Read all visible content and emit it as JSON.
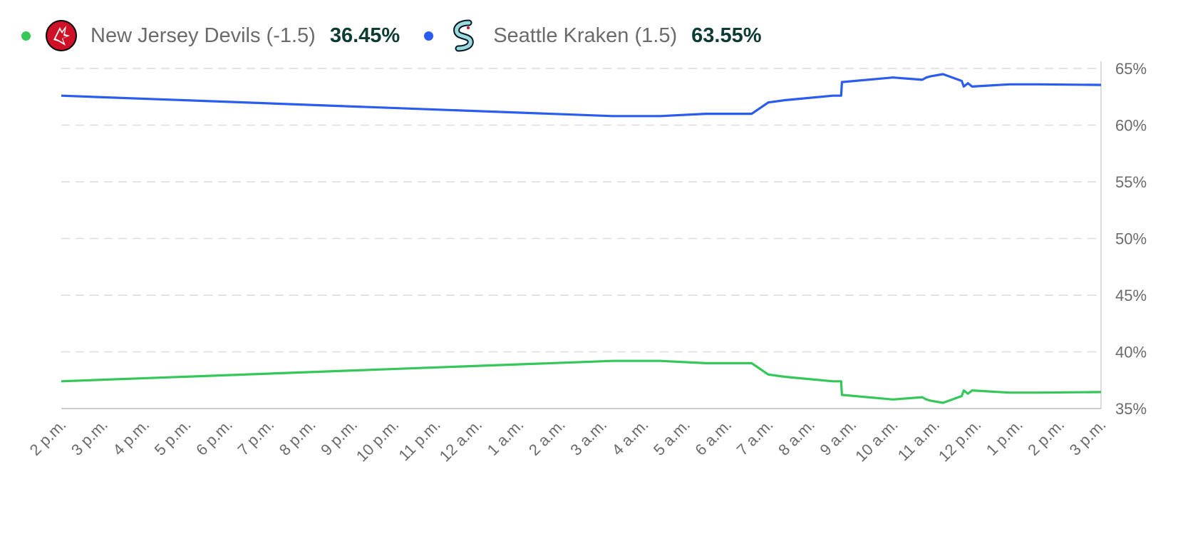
{
  "legend": [
    {
      "team": "New Jersey Devils (-1.5)",
      "pct": "36.45%",
      "color": "#35c75a",
      "logo_icon": "devils-logo-icon",
      "logo_color": "#ce1126"
    },
    {
      "team": "Seattle Kraken (1.5)",
      "pct": "63.55%",
      "color": "#2a5cf0",
      "logo_icon": "kraken-logo-icon",
      "logo_color": "#9cdbd9"
    }
  ],
  "chart_data": {
    "type": "line",
    "xlim": [
      0,
      25
    ],
    "ylim": [
      35,
      65
    ],
    "x_ticks": [
      "2 p.m.",
      "3 p.m.",
      "4 p.m.",
      "5 p.m.",
      "6 p.m.",
      "7 p.m.",
      "8 p.m.",
      "9 p.m.",
      "10 p.m.",
      "11 p.m.",
      "12 a.m.",
      "1 a.m.",
      "2 a.m.",
      "3 a.m.",
      "4 a.m.",
      "5 a.m.",
      "6 a.m.",
      "7 a.m.",
      "8 a.m.",
      "9 a.m.",
      "10 a.m.",
      "11 a.m.",
      "12 p.m.",
      "1 p.m.",
      "2 p.m.",
      "3 p.m."
    ],
    "y_ticks": [
      "35%",
      "40%",
      "45%",
      "50%",
      "55%",
      "60%",
      "65%"
    ],
    "y_tick_values": [
      35,
      40,
      45,
      50,
      55,
      60,
      65
    ],
    "grid": true,
    "legend_position": "top-left",
    "series": [
      {
        "name": "Seattle Kraken (1.5)",
        "color": "#2a5cf0",
        "x": [
          0,
          13.25,
          14.4,
          15.5,
          16.6,
          17.0,
          17.4,
          18.55,
          18.62,
          18.75,
          18.77,
          20.0,
          20.7,
          20.8,
          20.9,
          21.2,
          21.65,
          21.7,
          21.8,
          21.9,
          22.8,
          23.5,
          25.0
        ],
        "y": [
          62.6,
          60.8,
          60.8,
          61.0,
          61.0,
          62.0,
          62.2,
          62.6,
          62.6,
          62.6,
          63.8,
          64.2,
          64.0,
          64.2,
          64.3,
          64.5,
          63.9,
          63.4,
          63.7,
          63.4,
          63.6,
          63.6,
          63.55
        ]
      },
      {
        "name": "New Jersey Devils (-1.5)",
        "color": "#35c75a",
        "x": [
          0,
          13.25,
          14.4,
          15.5,
          16.6,
          17.0,
          17.4,
          18.55,
          18.62,
          18.75,
          18.77,
          20.0,
          20.7,
          20.8,
          20.9,
          21.2,
          21.65,
          21.7,
          21.8,
          21.9,
          22.8,
          23.5,
          25.0
        ],
        "y": [
          37.4,
          39.2,
          39.2,
          39.0,
          39.0,
          38.0,
          37.8,
          37.4,
          37.4,
          37.4,
          36.2,
          35.8,
          36.0,
          35.8,
          35.7,
          35.5,
          36.1,
          36.6,
          36.3,
          36.6,
          36.4,
          36.4,
          36.45
        ]
      }
    ]
  }
}
